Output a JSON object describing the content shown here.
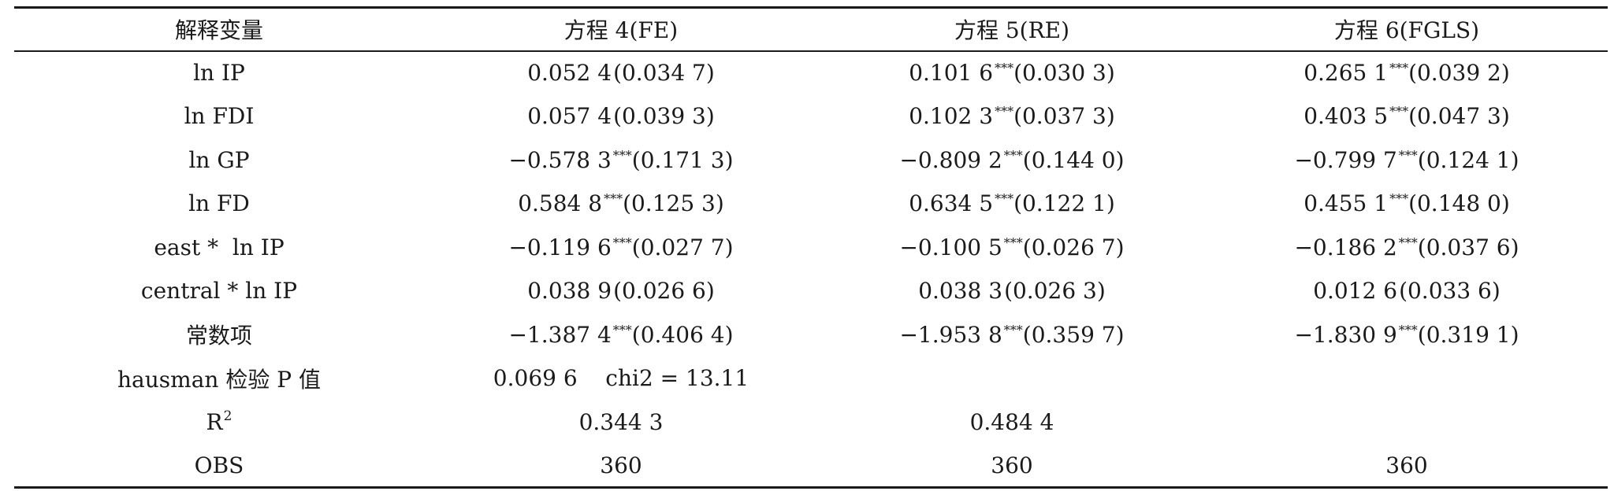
{
  "header": {
    "col0": "解释变量",
    "col1": "方程 4(FE)",
    "col2": "方程 5(RE)",
    "col3": "方程 6(FGLS)"
  },
  "rows": [
    {
      "label": "ln IP",
      "c1": {
        "coef": "0.052 4",
        "stars": "",
        "se": "(0.034 7)"
      },
      "c2": {
        "coef": "0.101 6",
        "stars": "***",
        "se": "(0.030 3)"
      },
      "c3": {
        "coef": "0.265 1",
        "stars": "***",
        "se": "(0.039 2)"
      }
    },
    {
      "label": "ln FDI",
      "c1": {
        "coef": "0.057 4",
        "stars": "",
        "se": "(0.039 3)"
      },
      "c2": {
        "coef": "0.102 3",
        "stars": "***",
        "se": "(0.037 3)"
      },
      "c3": {
        "coef": "0.403 5",
        "stars": "***",
        "se": "(0.047 3)"
      }
    },
    {
      "label": "ln GP",
      "c1": {
        "coef": "−0.578 3",
        "stars": "***",
        "se": "(0.171 3)"
      },
      "c2": {
        "coef": "−0.809 2",
        "stars": "***",
        "se": "(0.144 0)"
      },
      "c3": {
        "coef": "−0.799 7",
        "stars": "***",
        "se": "(0.124 1)"
      }
    },
    {
      "label": "ln FD",
      "c1": {
        "coef": "0.584 8",
        "stars": "***",
        "se": "(0.125 3)"
      },
      "c2": {
        "coef": "0.634 5",
        "stars": "***",
        "se": "(0.122 1)"
      },
      "c3": {
        "coef": "0.455 1",
        "stars": "***",
        "se": "(0.148 0)"
      }
    },
    {
      "label": "east *  ln IP",
      "c1": {
        "coef": "−0.119 6",
        "stars": "***",
        "se": "(0.027 7)"
      },
      "c2": {
        "coef": "−0.100 5",
        "stars": "***",
        "se": "(0.026 7)"
      },
      "c3": {
        "coef": "−0.186 2",
        "stars": "***",
        "se": "(0.037 6)"
      }
    },
    {
      "label": "central * ln IP",
      "c1": {
        "coef": "0.038 9",
        "stars": "",
        "se": "(0.026 6)"
      },
      "c2": {
        "coef": "0.038 3",
        "stars": "",
        "se": "(0.026 3)"
      },
      "c3": {
        "coef": "0.012 6",
        "stars": "",
        "se": "(0.033 6)"
      }
    },
    {
      "label": "常数项",
      "c1": {
        "coef": "−1.387 4",
        "stars": "***",
        "se": "(0.406 4)"
      },
      "c2": {
        "coef": "−1.953 8",
        "stars": "***",
        "se": "(0.359 7)"
      },
      "c3": {
        "coef": "−1.830 9",
        "stars": "***",
        "se": "(0.319 1)"
      }
    }
  ],
  "hausman": {
    "label": "hausman 检验 P 值",
    "value": "0.069 6    chi2 = 13.11"
  },
  "r2": {
    "label": "R",
    "label_sup": "2",
    "c1": "0.344 3",
    "c2": "0.484 4",
    "c3": ""
  },
  "obs": {
    "label": "OBS",
    "c1": "360",
    "c2": "360",
    "c3": "360"
  }
}
